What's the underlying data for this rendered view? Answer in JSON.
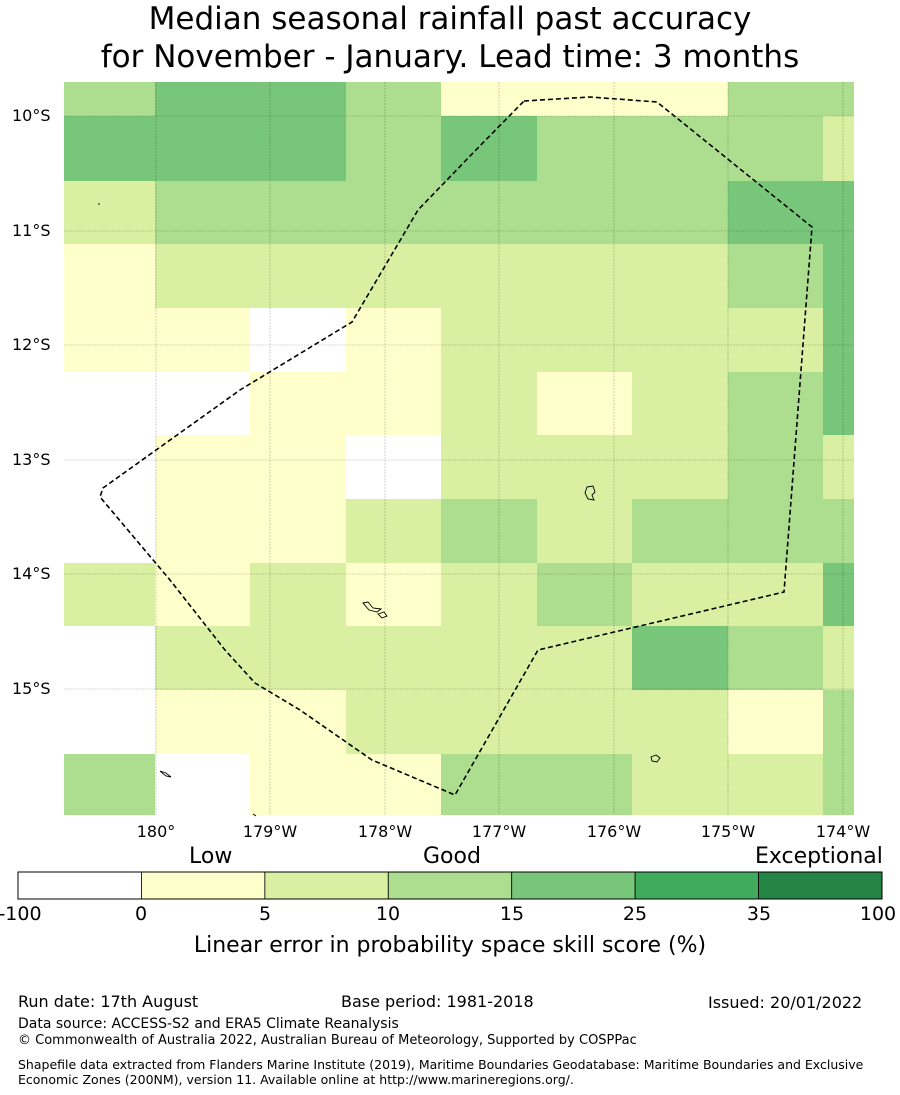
{
  "title": {
    "line1": "Median seasonal rainfall past accuracy",
    "line2": "for November - January. Lead time: 3 months"
  },
  "map": {
    "lat_labels": [
      "10°S",
      "11°S",
      "12°S",
      "13°S",
      "14°S",
      "15°S"
    ],
    "lon_labels": [
      "180°",
      "179°W",
      "178°W",
      "177°W",
      "176°W",
      "175°W",
      "174°W"
    ],
    "gridlines": true,
    "grid_columns": 9,
    "grid_rows": 12,
    "cell_categories": [
      [
        3,
        4,
        4,
        3,
        1,
        1,
        1,
        3,
        3
      ],
      [
        4,
        4,
        4,
        3,
        4,
        3,
        3,
        3,
        2
      ],
      [
        2,
        3,
        3,
        3,
        3,
        3,
        3,
        4,
        4
      ],
      [
        1,
        2,
        2,
        2,
        2,
        2,
        2,
        3,
        4
      ],
      [
        1,
        1,
        0,
        1,
        2,
        2,
        2,
        2,
        4
      ],
      [
        0,
        0,
        1,
        1,
        2,
        1,
        2,
        3,
        4
      ],
      [
        0,
        1,
        1,
        0,
        2,
        2,
        2,
        3,
        2
      ],
      [
        0,
        1,
        1,
        2,
        3,
        2,
        3,
        3,
        3
      ],
      [
        2,
        1,
        2,
        1,
        2,
        3,
        2,
        2,
        4
      ],
      [
        0,
        2,
        2,
        2,
        2,
        2,
        4,
        3,
        2
      ],
      [
        0,
        1,
        1,
        2,
        2,
        2,
        2,
        1,
        3
      ],
      [
        3,
        0,
        1,
        1,
        3,
        3,
        2,
        2,
        3
      ]
    ],
    "colors": {
      "c0": "#ffffff",
      "c1": "#ffffcc",
      "c2": "#d9f0a3",
      "c3": "#addd8e",
      "c4": "#78c679",
      "c5": "#41ab5d",
      "c6": "#238443",
      "eez_line": "#000000"
    }
  },
  "colorbar": {
    "categories": [
      "Low",
      "Good",
      "Exceptional"
    ],
    "ticks": [
      "-100",
      "0",
      "5",
      "10",
      "15",
      "25",
      "35",
      "100"
    ],
    "label": "Linear error in probability space skill score (%)"
  },
  "footer": {
    "run_date": "Run date: 17th August",
    "base_period": "Base period: 1981-2018",
    "issued": "Issued: 20/01/2022",
    "data_source": "Data source: ACCESS-S2 and ERA5 Climate Reanalysis",
    "copyright": "© Commonwealth of Australia 2022, Australian Bureau of Meteorology, Supported by COSPPac",
    "shapefile": "Shapefile data extracted from Flanders Marine Institute (2019), Maritime Boundaries Geodatabase: Maritime Boundaries and Exclusive Economic Zones (200NM), version 11. Available online at http://www.marineregions.org/."
  }
}
